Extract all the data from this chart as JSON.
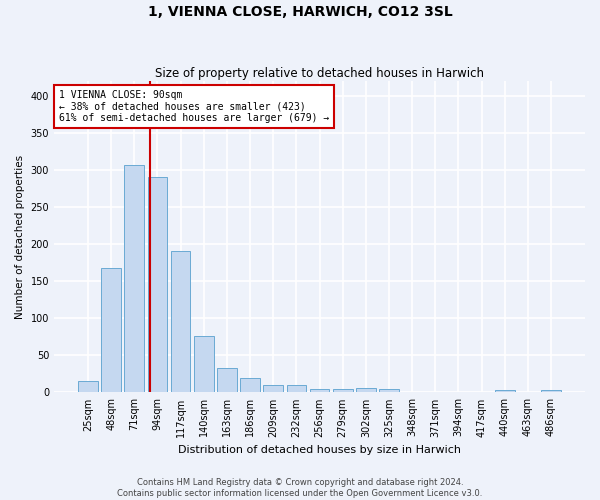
{
  "title": "1, VIENNA CLOSE, HARWICH, CO12 3SL",
  "subtitle": "Size of property relative to detached houses in Harwich",
  "xlabel": "Distribution of detached houses by size in Harwich",
  "ylabel": "Number of detached properties",
  "footer_line1": "Contains HM Land Registry data © Crown copyright and database right 2024.",
  "footer_line2": "Contains public sector information licensed under the Open Government Licence v3.0.",
  "bar_labels": [
    "25sqm",
    "48sqm",
    "71sqm",
    "94sqm",
    "117sqm",
    "140sqm",
    "163sqm",
    "186sqm",
    "209sqm",
    "232sqm",
    "256sqm",
    "279sqm",
    "302sqm",
    "325sqm",
    "348sqm",
    "371sqm",
    "394sqm",
    "417sqm",
    "440sqm",
    "463sqm",
    "486sqm"
  ],
  "bar_values": [
    15,
    168,
    306,
    290,
    190,
    76,
    33,
    20,
    10,
    10,
    5,
    5,
    6,
    5,
    0,
    0,
    0,
    0,
    3,
    0,
    3
  ],
  "bar_color": "#c5d8f0",
  "bar_edge_color": "#6aaad4",
  "background_color": "#eef2fa",
  "grid_color": "#ffffff",
  "vline_color": "#cc0000",
  "vline_x": 2.66,
  "annotation_text": "1 VIENNA CLOSE: 90sqm\n← 38% of detached houses are smaller (423)\n61% of semi-detached houses are larger (679) →",
  "annotation_box_color": "#ffffff",
  "annotation_box_edge_color": "#cc0000",
  "ylim": [
    0,
    420
  ],
  "yticks": [
    0,
    50,
    100,
    150,
    200,
    250,
    300,
    350,
    400
  ],
  "title_fontsize": 10,
  "subtitle_fontsize": 8.5,
  "xlabel_fontsize": 8,
  "ylabel_fontsize": 7.5,
  "tick_fontsize": 7,
  "footer_fontsize": 6,
  "annotation_fontsize": 7
}
